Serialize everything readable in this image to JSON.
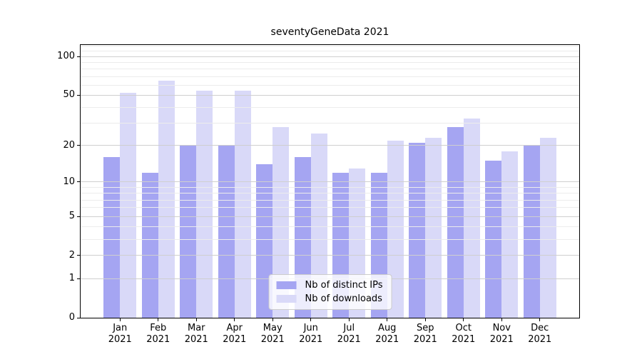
{
  "title": "seventyGeneData 2021",
  "chart_data": {
    "type": "bar",
    "x_months": [
      "Jan",
      "Feb",
      "Mar",
      "Apr",
      "May",
      "Jun",
      "Jul",
      "Aug",
      "Sep",
      "Oct",
      "Nov",
      "Dec"
    ],
    "x_year": "2021",
    "series": [
      {
        "name": "Nb of distinct IPs",
        "color": "#a5a5f2",
        "values": [
          16,
          12,
          20,
          20,
          14,
          16,
          12,
          12,
          21,
          28,
          15,
          20
        ]
      },
      {
        "name": "Nb of downloads",
        "color": "#d9d9f8",
        "values": [
          52,
          65,
          54,
          54,
          28,
          25,
          13,
          22,
          23,
          33,
          18,
          23
        ]
      }
    ],
    "y_scale": "log1p",
    "y_ticks": [
      100,
      50,
      20,
      10,
      5,
      2,
      1,
      0
    ],
    "y_minor_gridlines": [
      3,
      4,
      6,
      7,
      8,
      9,
      30,
      40,
      60,
      70,
      80,
      90,
      110,
      120
    ],
    "ylim": [
      0,
      123
    ],
    "grid": true,
    "legend_position": "lower center"
  },
  "colors": {
    "major_grid": "#cfcfcf",
    "minor_grid": "#ececec",
    "axis": "#000000",
    "background": "#ffffff"
  }
}
